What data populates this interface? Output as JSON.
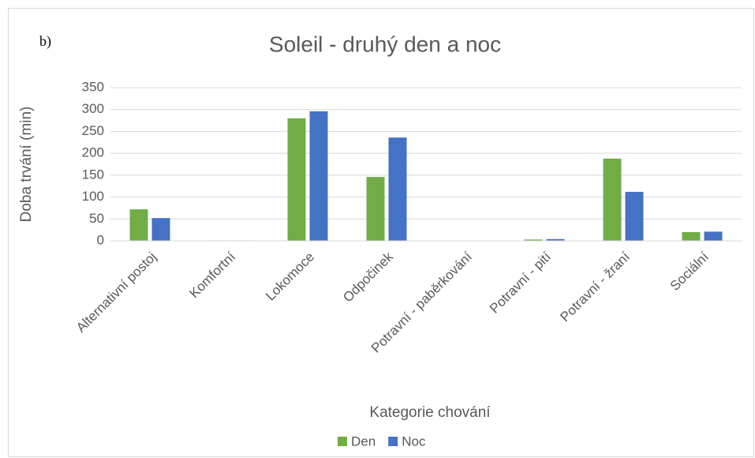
{
  "chart_data": {
    "type": "bar",
    "title": "Soleil - druhý den a noc",
    "annotation": "b)",
    "xlabel": "Kategorie chování",
    "ylabel": "Doba trvání (min)",
    "categories": [
      "Alternativní postoj",
      "Komfortní",
      "Lokomoce",
      "Odpočinek",
      "Potravní - paběrkování",
      "Potravní - pití",
      "Potravní - žraní",
      "Sociální"
    ],
    "series": [
      {
        "name": "Den",
        "color": "#70ad47",
        "values": [
          72,
          1,
          280,
          146,
          0,
          3,
          188,
          20
        ]
      },
      {
        "name": "Noc",
        "color": "#4472c4",
        "values": [
          52,
          1,
          296,
          236,
          0,
          4,
          112,
          21
        ]
      }
    ],
    "ylim": [
      0,
      350
    ],
    "yticks": [
      0,
      50,
      100,
      150,
      200,
      250,
      300,
      350
    ],
    "grid": true,
    "legend": "bottom"
  }
}
